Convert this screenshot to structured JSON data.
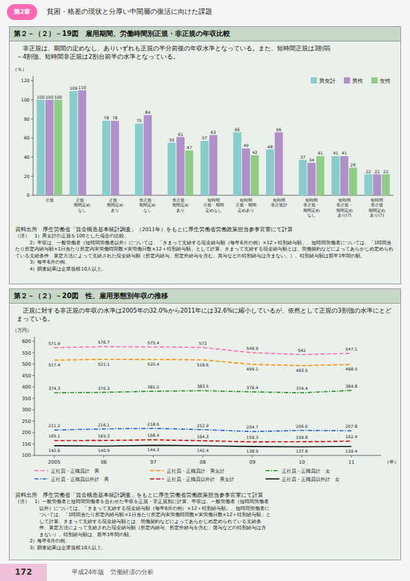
{
  "page": {
    "badge": "第2章",
    "header": "貧困・格差の現状と分厚い中間層の復活に向けた課題",
    "page_number": "172",
    "footer": "平成24年版　労働経済の分析"
  },
  "chart_data": [
    {
      "type": "bar",
      "title": "第２－（２）－19図　雇用期間、労働時間別正規・非正規の年収比較",
      "subtitle": "　非正規は、期間の定めなし、ありいずれも正規の半分前後の年収水準となっている。また、短時間正規は3割弱\n～4割強、短時間非正規は2割台前半の水準となっている。",
      "ylabel": "（％）",
      "categories": [
        "正規",
        "正規・\n期間定め\nなし",
        "正規・\n期間定め\nあり",
        "非正規・\n期間定め\nなし",
        "非正規・\n期間定め\nあり",
        "短時間\n正規・期間\n定めなし",
        "短時間\n正規・期間\n定めあり",
        "短時間\n非正規計",
        "短時間\n非正規・\n期間定め\nなし",
        "短時間\n非正規・\n期間定め\nあり(?)",
        "短時間\n非正規\n期間定め\nあり(?)"
      ],
      "series": [
        {
          "name": "男女計",
          "color": "#88cccc",
          "values": [
            100,
            109,
            78,
            75,
            55,
            57,
            66,
            48,
            37,
            41,
            22
          ]
        },
        {
          "name": "男性",
          "color": "#b090c8",
          "values": [
            100,
            110,
            78,
            84,
            61,
            63,
            49,
            66,
            34,
            41,
            22
          ]
        },
        {
          "name": "女性",
          "color": "#90cc88",
          "values": [
            100,
            null,
            null,
            null,
            47,
            null,
            42,
            null,
            41,
            29,
            22
          ]
        }
      ],
      "ylim": [
        0,
        125
      ],
      "yticks": [
        0,
        20,
        40,
        60,
        80,
        100,
        120
      ],
      "grid": false,
      "legend": "upper right",
      "data_labels": true,
      "annotations": [
        "資料出所　厚生労働省「賃金構造基本統計調査」（2011年）をもとに厚生労働省労働政策担当参事官室にて計算",
        "（注）　1）男女計の正規を100とした場合の比較。",
        "　　　2）年収は、一般労働者（短時間労働者以外）については、「きまって支給する現金給与額（毎年6月の例）×12＋特別給与額」、短時間労働者については、「1時間当たり所定内給与額×1日当たり所定内実労働時間数×実労働日数×12＋特別給与額」として計算。きまって支給する現金給与額とは、労働契約などによってあらかじめ定められている支給条件、算定方法によって支給された現金給与額（所定内給与、所定外給与を含む。賞与などの特別給与は含まない。）。特別給与額は前年1年間の額。",
        "　　　3）毎年6月の例。",
        "　　　4）調査結果は企業規模10人以上。"
      ]
    },
    {
      "type": "line",
      "title": "第２－（２）－20図　性、雇用形態別年収の推移",
      "subtitle": "　正規に対する非正規の年収の水準は2005年の32.0%から2011年には32.6%に縮小しているが、依然として正規の3割強の水準にとどまっている。",
      "xlabel": "（年）",
      "ylabel": "（万円）",
      "x": [
        2005,
        2006,
        2007,
        2008,
        2009,
        2010,
        2011
      ],
      "xlim": [
        2004.6,
        2011.6
      ],
      "xticks": [
        2005,
        {
          "value": 2006,
          "label": "06"
        },
        {
          "value": 2007,
          "label": "07"
        },
        {
          "value": 2008,
          "label": "08"
        },
        {
          "value": 2009,
          "label": "09"
        },
        {
          "value": 2010,
          "label": "10"
        },
        {
          "value": 2011,
          "label": "11"
        }
      ],
      "ylim": [
        100,
        620
      ],
      "yticks": [
        100,
        150,
        200,
        250,
        300,
        350,
        400,
        450,
        500,
        550,
        600
      ],
      "series": [
        {
          "name": "正社員・正職員計　男",
          "color": "#ff69b4",
          "line_style": "dashed",
          "values": [
            571.9,
            576.7,
            575.4,
            573.0,
            549.9,
            542.0,
            547.1
          ]
        },
        {
          "name": "正社員・正職員計　男女計",
          "color": "#ff8c00",
          "line_style": "dashed",
          "values": [
            517.4,
            521.1,
            520.4,
            518.6,
            499.1,
            493.5,
            498.5
          ]
        },
        {
          "name": "正社員・正職員計　女",
          "color": "#228b22",
          "line_style": "dashdot",
          "values": [
            374.3,
            376.3,
            381.2,
            383.5,
            378.4,
            374.4,
            384.8
          ]
        },
        {
          "name": "正社員・正職員以外計　男",
          "color": "#1e5fd4",
          "line_style": "dashdot",
          "values": [
            211.2,
            216.1,
            218.6,
            212.9,
            204.7,
            209.6,
            207.8
          ]
        },
        {
          "name": "正社員・正職員以外計　男女計",
          "color": "#cc0000",
          "line_style": "dashed",
          "values": [
            165.1,
            165.3,
            168.4,
            164.3,
            159.3,
            159.8,
            162.4
          ]
        },
        {
          "name": "正社員・正職員以外計　女",
          "color": "#111111",
          "line_style": "solid",
          "values": [
            142.6,
            140.9,
            144.3,
            142.4,
            138.9,
            137.8,
            139.4
          ]
        }
      ],
      "grid": false,
      "legend": "bottom",
      "data_labels": true,
      "annotations": [
        "資料出所　厚生労働省「賃金構造基本統計調査」をもとに厚生労働省労働政策担当参事官室にて計算",
        "（注）　1）一般労働者と短時間労働者を合わせた年収を正規・非正規別に計算。年収は、一般労働者（短時間労働者",
        "　　　　　以外）については、「きまって支給する現金給与額（毎年6月の例）×12＋特別給与額」、短時間労働者に",
        "　　　　　ついては、「1時間当たり所定内給与額×1日当たり所定内実労働時間数×実労働日数×12＋特別給与額」と",
        "　　　　　して計算。きまって支給する現金給与額とは、労働契約などによってあらかじめ定められている支給条",
        "　　　　　件、算定方法によって支給された現金給与額（所定内給与、所定外給与を含む。賃与などの特別給与は含",
        "　　　　　まない）。特別給与額は、前年1年間の額。",
        "　　　2）毎年6月の例。",
        "　　　3）調査結果は企業規模10人以上。"
      ]
    }
  ]
}
